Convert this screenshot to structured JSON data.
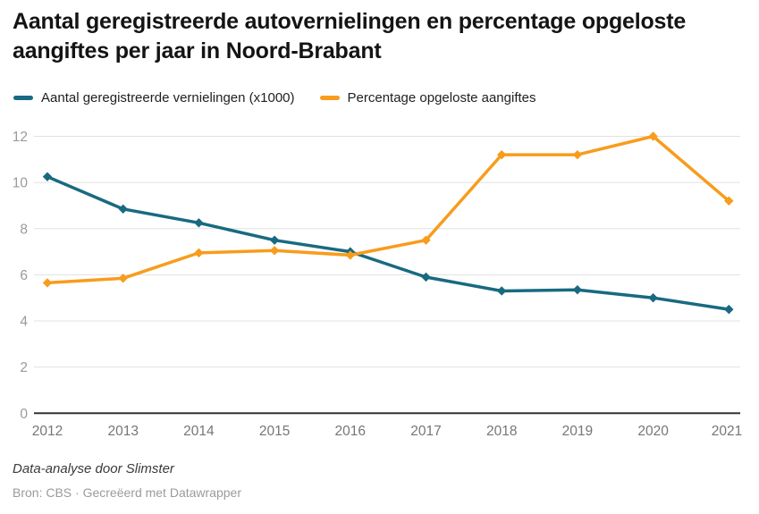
{
  "header": {
    "title": "Aantal geregistreerde autovernielingen en percentage opgeloste aangiftes per jaar in Noord-Brabant"
  },
  "chart_data": {
    "type": "line",
    "x": [
      2012,
      2013,
      2014,
      2015,
      2016,
      2017,
      2018,
      2019,
      2020,
      2021
    ],
    "series": [
      {
        "name": "Aantal geregistreerde vernielingen (x1000)",
        "color": "#186a80",
        "values": [
          10.25,
          8.85,
          8.25,
          7.5,
          7.0,
          5.9,
          5.3,
          5.35,
          5.0,
          4.5
        ]
      },
      {
        "name": "Percentage opgeloste aangiftes",
        "color": "#f89c1c",
        "values": [
          5.65,
          5.85,
          6.95,
          7.05,
          6.85,
          7.5,
          11.2,
          11.2,
          12.0,
          9.2
        ]
      }
    ],
    "title": "Aantal geregistreerde autovernielingen en percentage opgeloste aangiftes per jaar in Noord-Brabant",
    "xlabel": "",
    "ylabel": "",
    "ylim": [
      0,
      12
    ],
    "yticks": [
      0,
      2,
      4,
      6,
      8,
      10,
      12
    ],
    "grid": "horizontal",
    "legend_position": "top",
    "marker": "diamond"
  },
  "colors": {
    "grid_line": "#e1e1e1",
    "axis_baseline": "#333333",
    "y_tick_label": "#9a9a9a",
    "x_tick_label": "#767676"
  },
  "footer": {
    "byline": "Data-analyse door Slimster",
    "source": "Bron: CBS · Gecreëerd met Datawrapper"
  }
}
